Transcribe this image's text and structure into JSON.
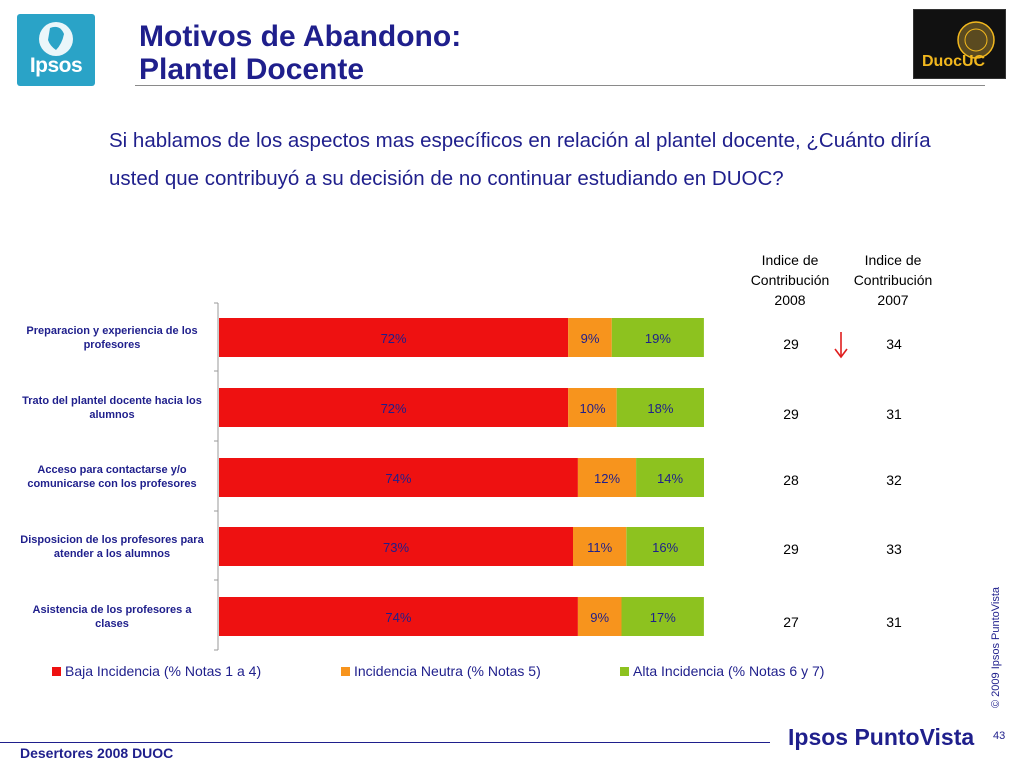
{
  "header": {
    "ipsos_logo_text": "Ipsos",
    "title_line1": "Motivos de Abandono:",
    "title_line2": "Plantel Docente",
    "duoc_logo_text": "DuocUC"
  },
  "question": "Si hablamos de los aspectos mas específicos en relación al plantel docente, ¿Cuánto diría usted que contribuyó a su decisión de no continuar estudiando en DUOC?",
  "index_columns": {
    "col2008": [
      "Indice de",
      "Contribución",
      "2008"
    ],
    "col2007": [
      "Indice de",
      "Contribución",
      "2007"
    ]
  },
  "chart_data": {
    "type": "bar",
    "orientation": "horizontal",
    "stacked": true,
    "categories": [
      [
        "Preparacion y experiencia de los",
        "profesores"
      ],
      [
        "Trato del plantel docente hacia los",
        "alumnos"
      ],
      [
        "Acceso para contactarse y/o",
        "comunicarse con los profesores"
      ],
      [
        "Disposicion de los profesores para",
        "atender a los alumnos"
      ],
      [
        "Asistencia de los profesores a",
        "clases"
      ]
    ],
    "series": [
      {
        "name": "Baja Incidencia (% Notas 1 a 4)",
        "values": [
          72,
          72,
          74,
          73,
          74
        ],
        "color": "#ee1111"
      },
      {
        "name": "Incidencia Neutra (% Notas 5)",
        "values": [
          9,
          10,
          12,
          11,
          9
        ],
        "color": "#f7941d"
      },
      {
        "name": "Alta Incidencia (% Notas 6 y 7)",
        "values": [
          19,
          18,
          14,
          16,
          17
        ],
        "color": "#8dc21f"
      }
    ],
    "value_format": "%",
    "xlim": [
      0,
      100
    ],
    "legend_position": "bottom",
    "grid": false
  },
  "indices": {
    "y2008": [
      "29",
      "29",
      "28",
      "29",
      "27"
    ],
    "y2007": [
      "34",
      "31",
      "32",
      "33",
      "31"
    ],
    "trend_icon": "red-down-arrow-icon",
    "trend_color": "#e01e1e"
  },
  "colors": {
    "title": "#1f1f8c",
    "ipsos_logo_bg": "#2aa3c7"
  },
  "copyright": "© 2009 Ipsos PuntoVista",
  "footer": {
    "left_text": "Desertores 2008 DUOC",
    "brand": "Ipsos PuntoVista",
    "page_number": "43"
  }
}
